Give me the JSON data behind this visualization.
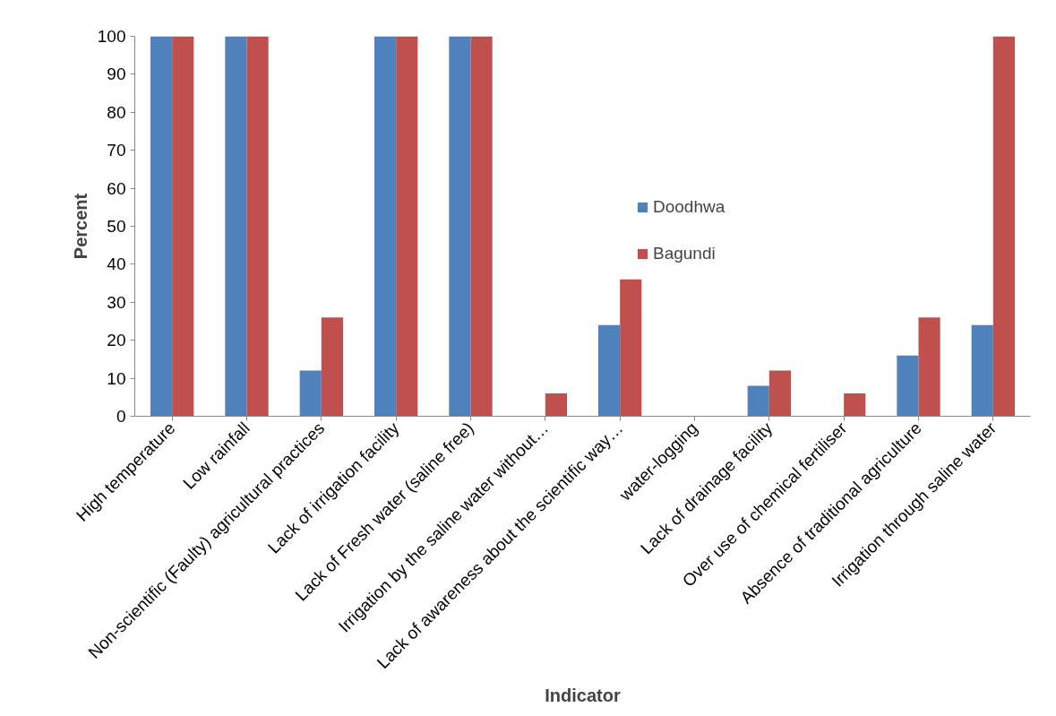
{
  "chart_data": {
    "type": "bar",
    "xlabel": "Indicator",
    "ylabel": "Percent",
    "categories": [
      "High temperature",
      "Low rainfall",
      "Non-scientific (Faulty) agricultural practices",
      "Lack of irrigation facility",
      "Lack of Fresh water (saline free)",
      "Irrigation by the saline water without…",
      "Lack of awareness about the scientific way…",
      "water-logging",
      "Lack of drainage facility",
      "Over use of chemical fertiliser",
      "Absence of traditional agriculture",
      "Irrigation through saline water"
    ],
    "series": [
      {
        "name": "Doodhwa",
        "color": "#4f81bd",
        "values": [
          100,
          100,
          12,
          100,
          100,
          0,
          24,
          0,
          8,
          0,
          16,
          24
        ]
      },
      {
        "name": "Bagundi",
        "color": "#c0504d",
        "values": [
          100,
          100,
          26,
          100,
          100,
          6,
          36,
          0,
          12,
          6,
          26,
          100
        ]
      }
    ],
    "ylim": [
      0,
      100
    ],
    "yticks": [
      0,
      10,
      20,
      30,
      40,
      50,
      60,
      70,
      80,
      90,
      100
    ],
    "grid": false,
    "legend": "right"
  }
}
